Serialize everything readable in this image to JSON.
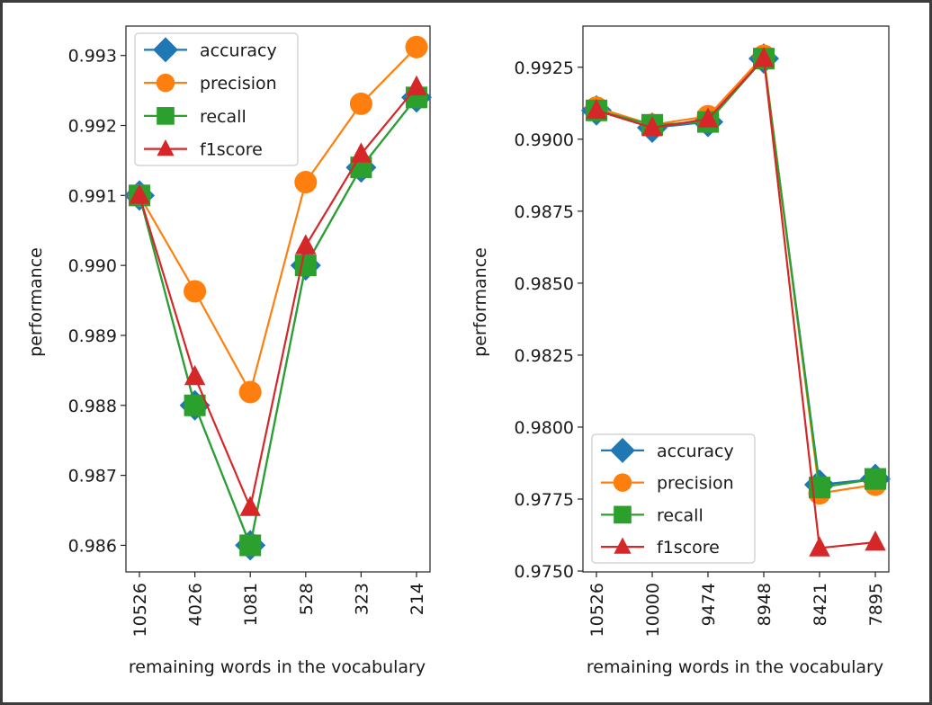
{
  "figure": {
    "xlabel": "remaining words in the vocabulary",
    "ylabel": "performance",
    "colors": {
      "accuracy": "#1f77b4",
      "precision": "#ff7f0e",
      "recall": "#2ca02c",
      "f1score": "#d62728"
    }
  },
  "chart_data": [
    {
      "type": "line",
      "xlabel": "remaining words in the vocabulary",
      "ylabel": "performance",
      "categories": [
        "10526",
        "4026",
        "1081",
        "528",
        "323",
        "214"
      ],
      "ylim": [
        0.98562,
        0.99342
      ],
      "yticks": [
        0.986,
        0.987,
        0.988,
        0.989,
        0.99,
        0.991,
        0.992,
        0.993
      ],
      "legend_position": "upper-left",
      "grid": false,
      "series": [
        {
          "name": "accuracy",
          "marker": "diamond",
          "values": [
            0.991,
            0.988,
            0.986,
            0.99,
            0.9914,
            0.9924
          ]
        },
        {
          "name": "precision",
          "marker": "circle",
          "values": [
            0.991,
            0.98963,
            0.98819,
            0.99119,
            0.99231,
            0.99312
          ]
        },
        {
          "name": "recall",
          "marker": "square",
          "values": [
            0.991,
            0.988,
            0.986,
            0.99,
            0.9914,
            0.9924
          ]
        },
        {
          "name": "f1score",
          "marker": "triangle",
          "values": [
            0.991,
            0.98841,
            0.98654,
            0.99028,
            0.99159,
            0.99255
          ]
        }
      ]
    },
    {
      "type": "line",
      "xlabel": "remaining words in the vocabulary",
      "ylabel": "performance",
      "categories": [
        "10526",
        "10000",
        "9474",
        "8948",
        "8421",
        "7895"
      ],
      "ylim": [
        0.97497,
        0.99393
      ],
      "yticks": [
        0.975,
        0.9775,
        0.98,
        0.9825,
        0.985,
        0.9875,
        0.99,
        0.9925
      ],
      "legend_position": "lower-left",
      "grid": false,
      "series": [
        {
          "name": "accuracy",
          "marker": "diamond",
          "values": [
            0.991,
            0.9904,
            0.9906,
            0.9928,
            0.978,
            0.9782
          ]
        },
        {
          "name": "precision",
          "marker": "circle",
          "values": [
            0.9911,
            0.9905,
            0.9908,
            0.9929,
            0.9777,
            0.978
          ]
        },
        {
          "name": "recall",
          "marker": "square",
          "values": [
            0.991,
            0.9905,
            0.9906,
            0.9928,
            0.9779,
            0.9782
          ]
        },
        {
          "name": "f1score",
          "marker": "triangle",
          "values": [
            0.991,
            0.9904,
            0.9907,
            0.9928,
            0.9758,
            0.976
          ]
        }
      ]
    }
  ]
}
